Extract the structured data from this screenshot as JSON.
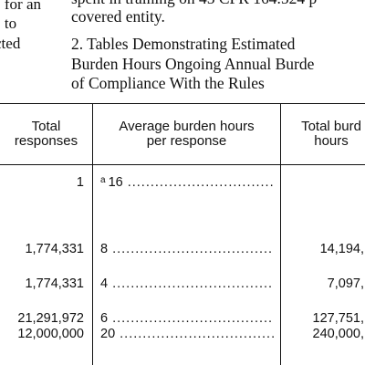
{
  "left_text": {
    "lines": [
      "s for an",
      "s to",
      "cted"
    ]
  },
  "right_text": {
    "line0": "spent in training on 45 CFR 164.524 p",
    "line1": "covered entity.",
    "heading_line1": "2. Tables Demonstrating Estimated",
    "heading_line2": "Burden Hours Ongoing Annual Burde",
    "heading_line3": "of Compliance With the Rules"
  },
  "table": {
    "headers": {
      "total_responses": [
        "Total",
        "responses"
      ],
      "avg_burden": [
        "Average burden hours",
        "per response"
      ],
      "total_burden": [
        "Total burd",
        "hours"
      ]
    },
    "rows": [
      {
        "responses": "1",
        "avg_sup": "a",
        "avg": "16",
        "total": ""
      },
      {
        "responses": "1,774,331",
        "avg_sup": "",
        "avg": "8",
        "total": "14,194,"
      },
      {
        "responses": "1,774,331",
        "avg_sup": "",
        "avg": "4",
        "total": "7,097,"
      },
      {
        "responses": "21,291,972",
        "avg_sup": "",
        "avg": "6",
        "total": "127,751,"
      },
      {
        "responses": "12,000,000",
        "avg_sup": "",
        "avg": "20",
        "total": "240,000,"
      }
    ]
  }
}
